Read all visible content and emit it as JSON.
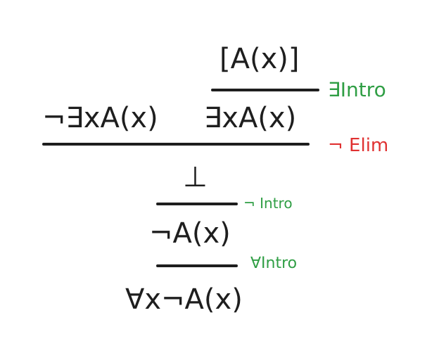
{
  "formulas": {
    "assumption": "[A(x)]",
    "not_exists": "¬∃xA(x)",
    "exists": "∃xA(x)",
    "bottom": "⊥",
    "not_a": "¬A(x)",
    "forall_not_a": "∀x¬A(x)"
  },
  "rules": {
    "exists_intro": "∃Intro",
    "not_elim": "¬ Elim",
    "not_intro": "¬ Intro",
    "forall_intro": "∀Intro"
  },
  "colors": {
    "ink": "#1e1e1e",
    "intro_green": "#2f9e44",
    "elim_red": "#e03131"
  }
}
